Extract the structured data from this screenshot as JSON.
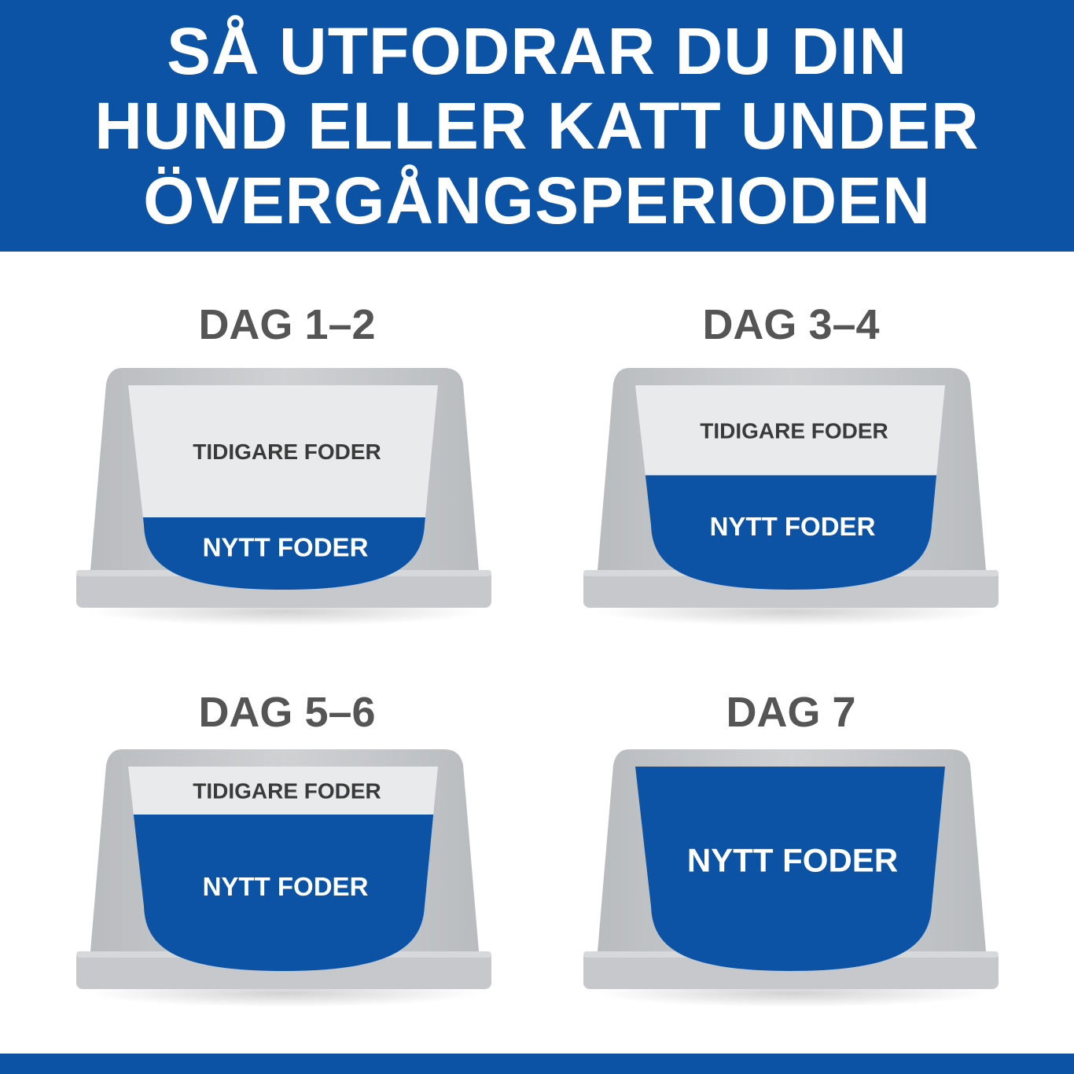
{
  "header": {
    "title_lines": [
      "SÅ UTFODRAR DU DIN",
      "HUND ELLER KATT UNDER",
      "ÖVERGÅNGSPERIODEN"
    ]
  },
  "colors": {
    "brand_blue": "#0c53a5",
    "bowl_grey": "#c3c6c9",
    "label_white": "#e9eaeb",
    "text_grey": "#555555"
  },
  "steps": [
    {
      "day": "DAG 1–2",
      "old_label": "TIDIGARE FODER",
      "new_label": "NYTT FODER",
      "new_food_share": 0.25
    },
    {
      "day": "DAG 3–4",
      "old_label": "TIDIGARE FODER",
      "new_label": "NYTT FODER",
      "new_food_share": 0.5
    },
    {
      "day": "DAG 5–6",
      "old_label": "TIDIGARE FODER",
      "new_label": "NYTT FODER",
      "new_food_share": 0.75
    },
    {
      "day": "DAG 7",
      "old_label": "",
      "new_label": "NYTT FODER",
      "new_food_share": 1.0
    }
  ]
}
